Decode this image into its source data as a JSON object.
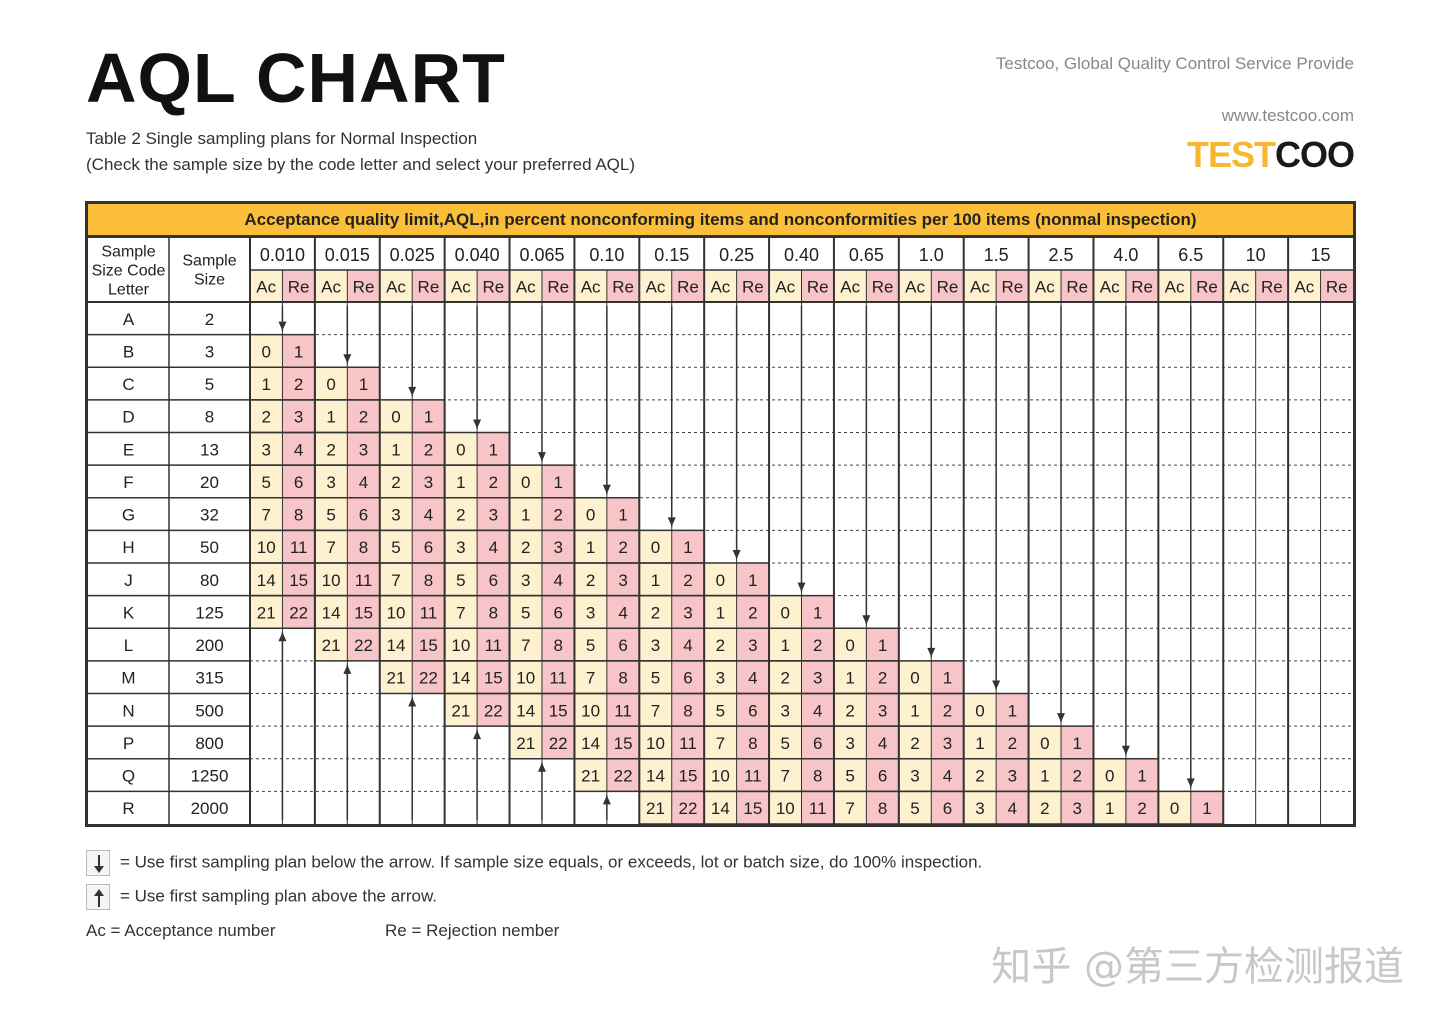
{
  "header": {
    "title": "AQL CHART",
    "subtitle_line1": "Table 2 Single sampling plans for Normal Inspection",
    "subtitle_line2": "(Check the sample size by the code letter and select your preferred AQL)",
    "company": "Testcoo, Global Quality Control Service Provide",
    "website": "www.testcoo.com",
    "logo_part1": "TEST",
    "logo_part2": "COO"
  },
  "table": {
    "banner": "Acceptance quality limit,AQL,in percent nonconforming items and nonconformities per 100 items (nonmal inspection)",
    "col_code_header": "Sample Size Code Letter",
    "col_size_header": "Sample Size",
    "ac_label": "Ac",
    "re_label": "Re",
    "aql_levels": [
      "0.010",
      "0.015",
      "0.025",
      "0.040",
      "0.065",
      "0.10",
      "0.15",
      "0.25",
      "0.40",
      "0.65",
      "1.0",
      "1.5",
      "2.5",
      "4.0",
      "6.5",
      "10",
      "15"
    ],
    "rows": [
      {
        "code": "A",
        "size": "2"
      },
      {
        "code": "B",
        "size": "3"
      },
      {
        "code": "C",
        "size": "5"
      },
      {
        "code": "D",
        "size": "8"
      },
      {
        "code": "E",
        "size": "13"
      },
      {
        "code": "F",
        "size": "20"
      },
      {
        "code": "G",
        "size": "32"
      },
      {
        "code": "H",
        "size": "50"
      },
      {
        "code": "J",
        "size": "80"
      },
      {
        "code": "K",
        "size": "125"
      },
      {
        "code": "L",
        "size": "200"
      },
      {
        "code": "M",
        "size": "315"
      },
      {
        "code": "N",
        "size": "500"
      },
      {
        "code": "P",
        "size": "800"
      },
      {
        "code": "Q",
        "size": "1250"
      },
      {
        "code": "R",
        "size": "2000"
      }
    ],
    "plans": [
      [
        [
          0,
          1
        ],
        [
          1,
          2
        ],
        [
          2,
          3
        ],
        [
          3,
          4
        ],
        [
          5,
          6
        ],
        [
          7,
          8
        ],
        [
          10,
          11
        ],
        [
          14,
          15
        ],
        [
          21,
          22
        ]
      ]
    ],
    "colors": {
      "ac_fill": "#fdf1cf",
      "re_fill": "#f7c4c7",
      "banner_fill": "#fbbf3a",
      "border": "#333333",
      "arrow": "#333333"
    }
  },
  "legend": {
    "down_text": "= Use first sampling plan below the arrow. If sample size equals, or exceeds, lot or batch size, do 100% inspection.",
    "up_text": "= Use first sampling plan above the arrow.",
    "ac_text": "Ac = Acceptance number",
    "re_text": "Re = Rejection nember",
    "down_icon": "down-arrow-icon",
    "up_icon": "up-arrow-icon"
  },
  "watermark": "知乎 @第三方检测报道"
}
